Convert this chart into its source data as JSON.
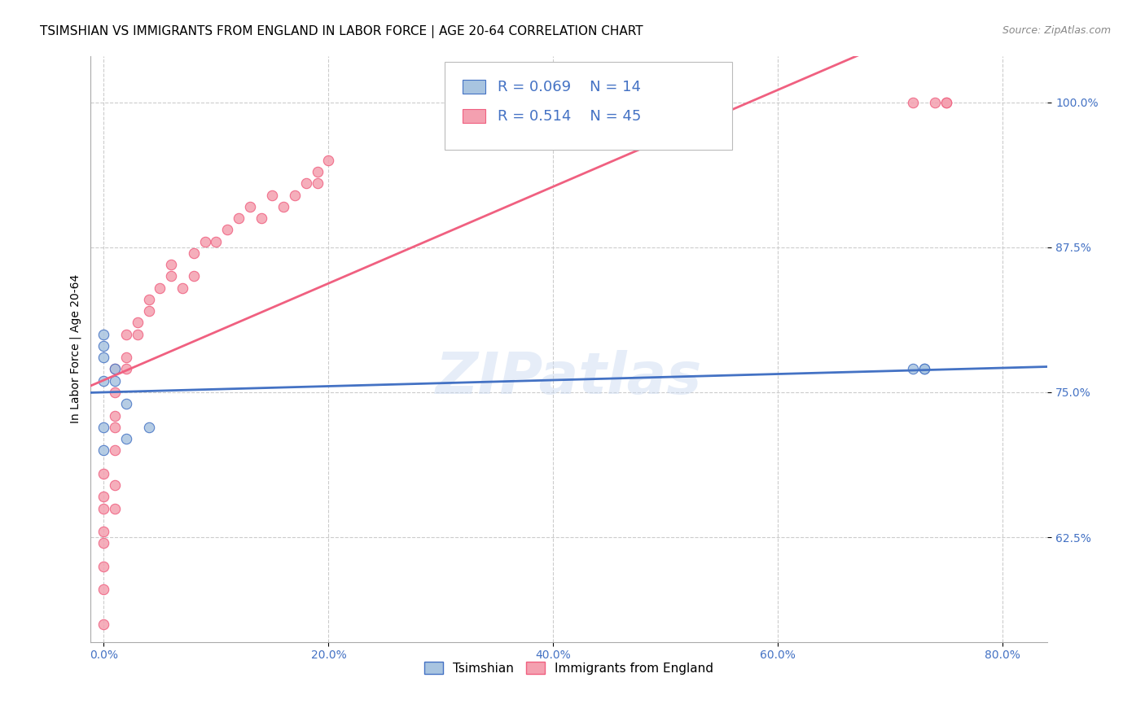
{
  "title": "TSIMSHIAN VS IMMIGRANTS FROM ENGLAND IN LABOR FORCE | AGE 20-64 CORRELATION CHART",
  "source": "Source: ZipAtlas.com",
  "ylabel": "In Labor Force | Age 20-64",
  "watermark": "ZIPatlas",
  "legend_r1": "R = 0.069",
  "legend_n1": "N = 14",
  "legend_r2": "R = 0.514",
  "legend_n2": "N = 45",
  "label1": "Tsimshian",
  "label2": "Immigrants from England",
  "x_ticks_labels": [
    "0.0%",
    "20.0%",
    "40.0%",
    "60.0%",
    "80.0%"
  ],
  "x_ticks_vals": [
    0.0,
    0.2,
    0.4,
    0.6,
    0.8
  ],
  "y_ticks_labels": [
    "62.5%",
    "75.0%",
    "87.5%",
    "100.0%"
  ],
  "y_ticks_vals": [
    0.625,
    0.75,
    0.875,
    1.0
  ],
  "x_min": -0.012,
  "x_max": 0.84,
  "y_min": 0.535,
  "y_max": 1.04,
  "color1": "#a8c4e0",
  "color2": "#f4a0b0",
  "line_color1": "#4472c4",
  "line_color2": "#f06080",
  "background": "#ffffff",
  "tsimshian_x": [
    0.0,
    0.0,
    0.0,
    0.0,
    0.0,
    0.0,
    0.01,
    0.01,
    0.02,
    0.02,
    0.04,
    0.72,
    0.73,
    0.73
  ],
  "tsimshian_y": [
    0.7,
    0.72,
    0.76,
    0.78,
    0.79,
    0.8,
    0.76,
    0.77,
    0.71,
    0.74,
    0.72,
    0.77,
    0.77,
    0.77
  ],
  "england_x": [
    0.0,
    0.0,
    0.0,
    0.0,
    0.0,
    0.0,
    0.0,
    0.0,
    0.01,
    0.01,
    0.01,
    0.01,
    0.01,
    0.01,
    0.01,
    0.02,
    0.02,
    0.02,
    0.03,
    0.03,
    0.04,
    0.04,
    0.05,
    0.06,
    0.06,
    0.07,
    0.08,
    0.08,
    0.09,
    0.1,
    0.11,
    0.12,
    0.13,
    0.14,
    0.15,
    0.16,
    0.17,
    0.18,
    0.19,
    0.19,
    0.2,
    0.72,
    0.74,
    0.75,
    0.75
  ],
  "england_y": [
    0.55,
    0.58,
    0.6,
    0.62,
    0.63,
    0.65,
    0.66,
    0.68,
    0.65,
    0.67,
    0.7,
    0.72,
    0.73,
    0.75,
    0.77,
    0.77,
    0.78,
    0.8,
    0.8,
    0.81,
    0.82,
    0.83,
    0.84,
    0.85,
    0.86,
    0.84,
    0.85,
    0.87,
    0.88,
    0.88,
    0.89,
    0.9,
    0.91,
    0.9,
    0.92,
    0.91,
    0.92,
    0.93,
    0.94,
    0.93,
    0.95,
    1.0,
    1.0,
    1.0,
    1.0
  ],
  "marker_size": 80,
  "title_fontsize": 11,
  "axis_label_fontsize": 10,
  "tick_fontsize": 10,
  "legend_fontsize": 13,
  "source_fontsize": 9
}
